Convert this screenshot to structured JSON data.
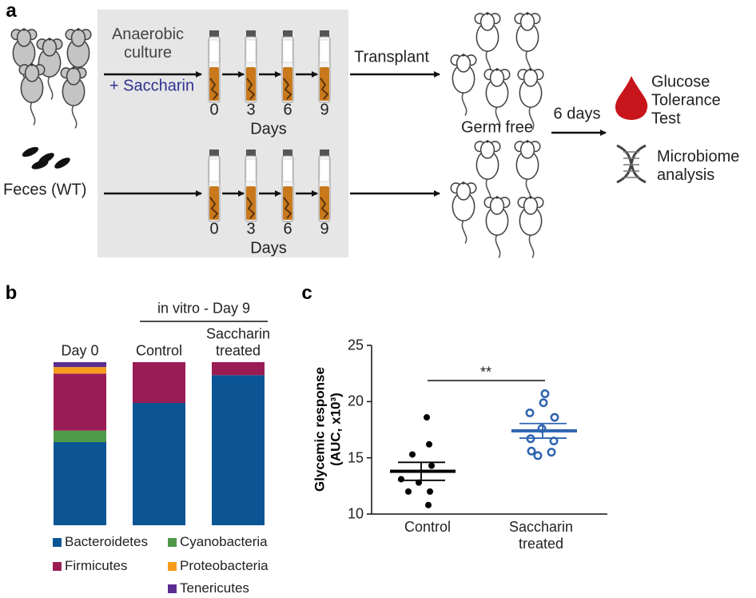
{
  "panel_labels": [
    "a",
    "b",
    "c"
  ],
  "diagram": {
    "culture_label": "Anaerobic\nculture",
    "treatment_label": "+ Saccharin",
    "day_labels": [
      "0",
      "3",
      "6",
      "9"
    ],
    "days_title": "Days",
    "source_label": "Feces (WT)",
    "transplant_label": "Transplant",
    "recipient_label": "Germ free",
    "interval_label": "6 days",
    "outcomes": [
      "Glucose\nTolerance\nTest",
      "Microbiome\nanalysis"
    ]
  },
  "chart_data": [
    {
      "type": "stacked_bar",
      "group_label": "in vitro - Day 9",
      "categories": [
        "Day 0",
        "Control",
        "Saccharin\ntreated"
      ],
      "series": [
        {
          "name": "Bacteroidetes",
          "color": "#0b5595",
          "values": [
            51,
            75,
            92
          ]
        },
        {
          "name": "Cyanobacteria",
          "color": "#4f9a48",
          "values": [
            7,
            0,
            0
          ]
        },
        {
          "name": "Firmicutes",
          "color": "#9a1c55",
          "values": [
            35,
            25,
            8
          ]
        },
        {
          "name": "Proteobacteria",
          "color": "#f59c1c",
          "values": [
            4,
            0,
            0
          ]
        },
        {
          "name": "Tenericutes",
          "color": "#5b2c90",
          "values": [
            3,
            0,
            0
          ]
        }
      ]
    },
    {
      "type": "dot_plot",
      "ylabel": "Glycemic response\n(AUC, x10³)",
      "categories": [
        "Control",
        "Saccharin\ntreated"
      ],
      "groups": [
        {
          "values": [
            18.6,
            16.2,
            15.3,
            14.3,
            13.1,
            12.8,
            12.0,
            12.0,
            10.8
          ],
          "mean": 13.8,
          "sem": 0.8,
          "color": "#000000",
          "marker": "filled"
        },
        {
          "values": [
            20.7,
            19.9,
            19.0,
            18.6,
            17.6,
            16.7,
            16.5,
            15.6,
            15.5,
            15.2
          ],
          "mean": 17.4,
          "sem": 0.65,
          "color": "#2e64b0",
          "marker": "open"
        }
      ],
      "ylim": [
        10,
        25
      ],
      "yticks": [
        10,
        15,
        20,
        25
      ],
      "significance": "**"
    }
  ]
}
